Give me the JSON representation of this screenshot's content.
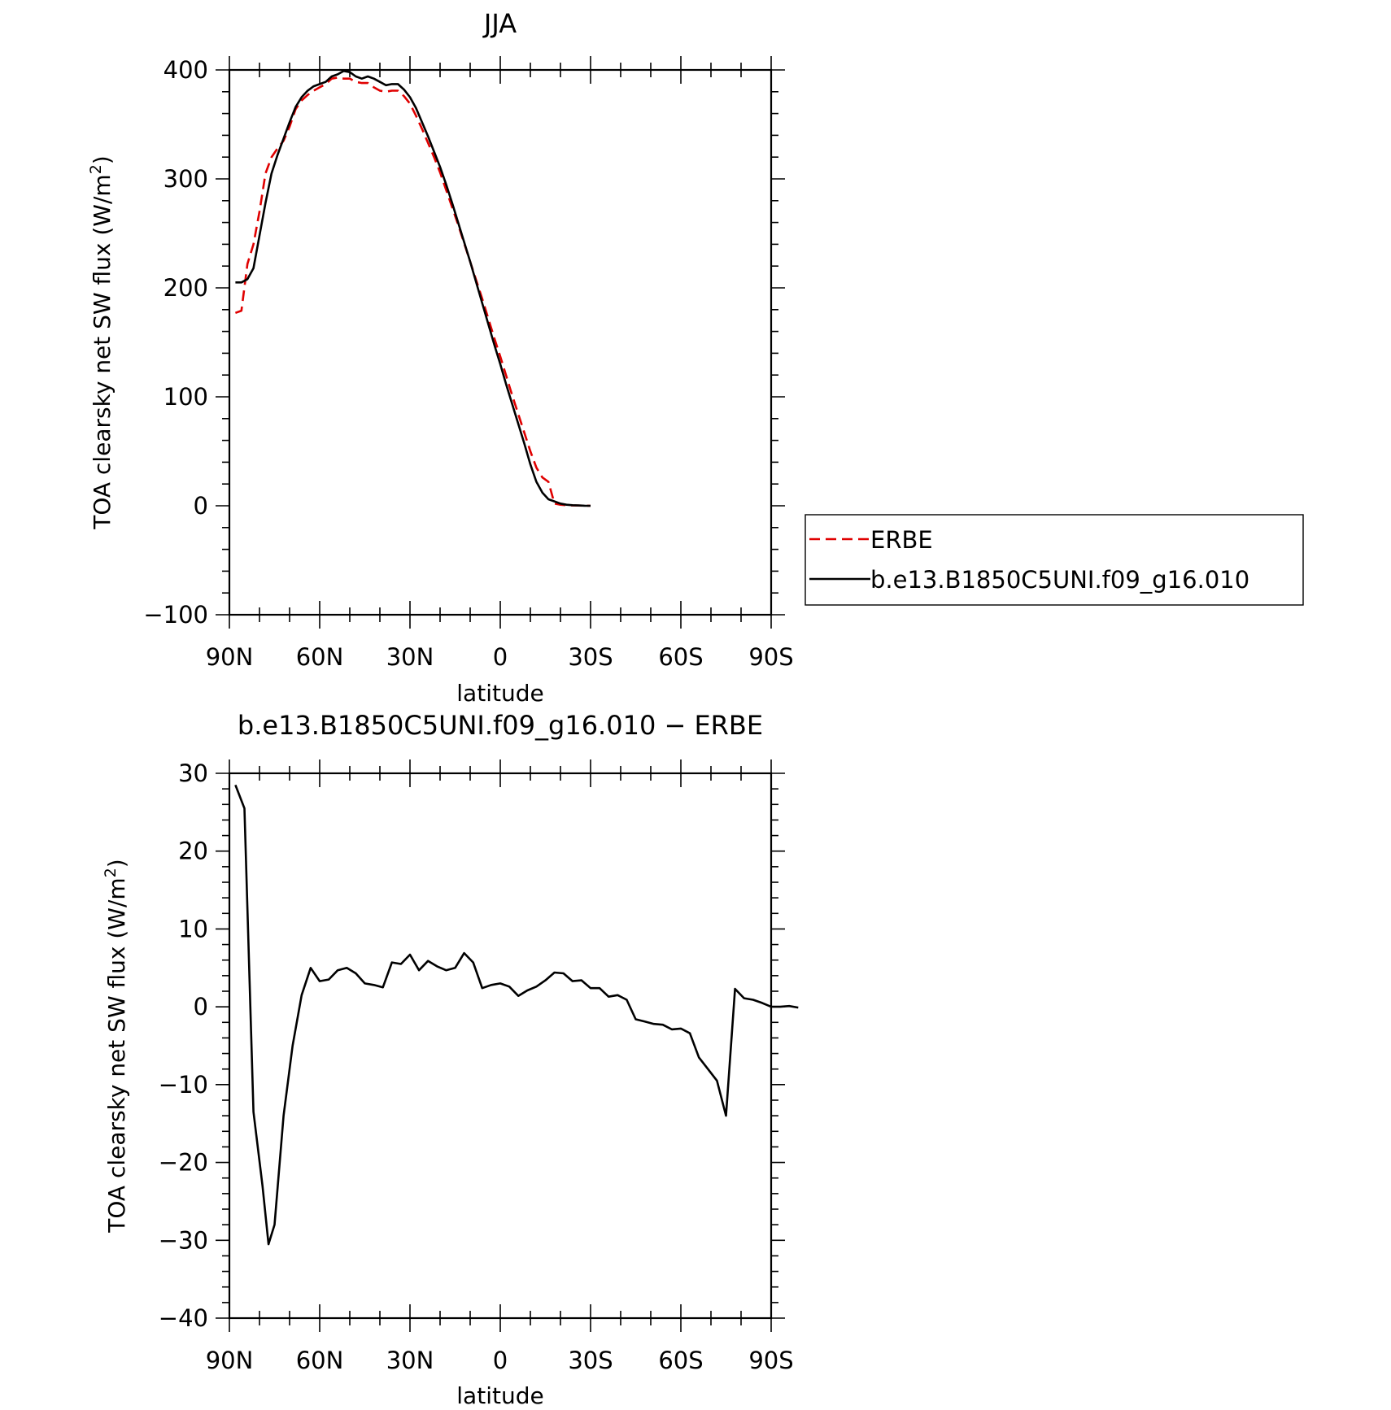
{
  "chart_data": [
    {
      "type": "line",
      "title": "JJA",
      "xlabel": "latitude",
      "ylabel": "TOA clearsky net SW flux (W/m",
      "ylabel_sup": "2",
      "ylabel_tail": ")",
      "xlim": [
        90,
        -90
      ],
      "ylim": [
        -100,
        400
      ],
      "x_ticks": [
        90,
        60,
        30,
        0,
        -30,
        -60,
        -90
      ],
      "x_tick_labels": [
        "90N",
        "60N",
        "30N",
        "0",
        "30S",
        "60S",
        "90S"
      ],
      "y_ticks": [
        -100,
        0,
        100,
        200,
        300,
        400
      ],
      "y_tick_labels": [
        "−100",
        "0",
        "100",
        "200",
        "300",
        "400"
      ],
      "legend": {
        "placement": "right"
      },
      "series": [
        {
          "name": "ERBE",
          "color": "#e00000",
          "dash": "dashed",
          "points": [
            [
              88,
              177
            ],
            [
              86,
              179
            ],
            [
              84,
              222
            ],
            [
              82,
              240
            ],
            [
              80,
              270
            ],
            [
              78,
              305
            ],
            [
              76,
              320
            ],
            [
              74,
              328
            ],
            [
              72,
              335
            ],
            [
              70,
              348
            ],
            [
              68,
              364
            ],
            [
              66,
              372
            ],
            [
              64,
              377
            ],
            [
              62,
              381
            ],
            [
              60,
              384
            ],
            [
              58,
              387
            ],
            [
              56,
              392
            ],
            [
              54,
              393
            ],
            [
              52,
              392
            ],
            [
              50,
              392
            ],
            [
              48,
              389
            ],
            [
              46,
              388
            ],
            [
              44,
              388
            ],
            [
              42,
              384
            ],
            [
              40,
              381
            ],
            [
              38,
              380
            ],
            [
              36,
              381
            ],
            [
              34,
              381
            ],
            [
              32,
              376
            ],
            [
              30,
              369
            ],
            [
              28,
              358
            ],
            [
              26,
              346
            ],
            [
              24,
              333
            ],
            [
              22,
              320
            ],
            [
              20,
              306
            ],
            [
              18,
              290
            ],
            [
              16,
              274
            ],
            [
              14,
              258
            ],
            [
              12,
              241
            ],
            [
              10,
              224
            ],
            [
              8,
              207
            ],
            [
              6,
              190
            ],
            [
              4,
              172
            ],
            [
              2,
              154
            ],
            [
              0,
              137
            ],
            [
              -2,
              119
            ],
            [
              -4,
              101
            ],
            [
              -6,
              84
            ],
            [
              -8,
              67
            ],
            [
              -10,
              50
            ],
            [
              -12,
              35
            ],
            [
              -14,
              26
            ],
            [
              -16,
              22
            ],
            [
              -18,
              2
            ],
            [
              -20,
              1
            ],
            [
              -22,
              0.5
            ],
            [
              -24,
              0.3
            ],
            [
              -26,
              0.2
            ],
            [
              -28,
              0.1
            ],
            [
              -30,
              0
            ]
          ]
        },
        {
          "name": "b.e13.B1850C5UNI.f09_g16.010",
          "color": "#000000",
          "dash": "solid",
          "points": [
            [
              88,
              205
            ],
            [
              86,
              205
            ],
            [
              84,
              208
            ],
            [
              82,
              218
            ],
            [
              80,
              248
            ],
            [
              78,
              278
            ],
            [
              76,
              305
            ],
            [
              74,
              322
            ],
            [
              72,
              337
            ],
            [
              70,
              352
            ],
            [
              68,
              366
            ],
            [
              66,
              375
            ],
            [
              64,
              381
            ],
            [
              62,
              385
            ],
            [
              60,
              387
            ],
            [
              58,
              389
            ],
            [
              56,
              394
            ],
            [
              54,
              396
            ],
            [
              52,
              399
            ],
            [
              50,
              398
            ],
            [
              48,
              394
            ],
            [
              46,
              392
            ],
            [
              44,
              394
            ],
            [
              42,
              392
            ],
            [
              40,
              389
            ],
            [
              38,
              386
            ],
            [
              36,
              387
            ],
            [
              34,
              387
            ],
            [
              32,
              382
            ],
            [
              30,
              375
            ],
            [
              28,
              365
            ],
            [
              26,
              352
            ],
            [
              24,
              339
            ],
            [
              22,
              325
            ],
            [
              20,
              311
            ],
            [
              18,
              295
            ],
            [
              16,
              278
            ],
            [
              14,
              260
            ],
            [
              12,
              242
            ],
            [
              10,
              224
            ],
            [
              8,
              205
            ],
            [
              6,
              186
            ],
            [
              4,
              167
            ],
            [
              2,
              148
            ],
            [
              0,
              130
            ],
            [
              -2,
              111
            ],
            [
              -4,
              93
            ],
            [
              -6,
              75
            ],
            [
              -8,
              57
            ],
            [
              -10,
              38
            ],
            [
              -12,
              22
            ],
            [
              -14,
              12
            ],
            [
              -16,
              6
            ],
            [
              -18,
              4
            ],
            [
              -20,
              2
            ],
            [
              -22,
              1
            ],
            [
              -24,
              0.5
            ],
            [
              -26,
              0.3
            ],
            [
              -28,
              0.1
            ],
            [
              -30,
              0
            ]
          ]
        }
      ]
    },
    {
      "type": "line",
      "title": "b.e13.B1850C5UNI.f09_g16.010 − ERBE",
      "xlabel": "latitude",
      "ylabel": "TOA clearsky net SW flux (W/m",
      "ylabel_sup": "2",
      "ylabel_tail": ")",
      "xlim": [
        90,
        -90
      ],
      "ylim": [
        -40,
        30
      ],
      "x_ticks": [
        90,
        60,
        30,
        0,
        -30,
        -60,
        -90
      ],
      "x_tick_labels": [
        "90N",
        "60N",
        "30N",
        "0",
        "30S",
        "60S",
        "90S"
      ],
      "y_ticks": [
        -40,
        -30,
        -20,
        -10,
        0,
        10,
        20,
        30
      ],
      "y_tick_labels": [
        "−40",
        "−30",
        "−20",
        "−10",
        "0",
        "10",
        "20",
        "30"
      ],
      "series": [
        {
          "color": "#000000",
          "dash": "solid",
          "points": [
            [
              88,
              28.5
            ],
            [
              85,
              25.5
            ],
            [
              82,
              -13.5
            ],
            [
              79,
              -23
            ],
            [
              77,
              -30.5
            ],
            [
              75,
              -28
            ],
            [
              72,
              -14
            ],
            [
              69,
              -5
            ],
            [
              66,
              1.5
            ],
            [
              63,
              5
            ],
            [
              60,
              3.3
            ],
            [
              57,
              3.5
            ],
            [
              54,
              4.7
            ],
            [
              51,
              5
            ],
            [
              48,
              4.3
            ],
            [
              45,
              3
            ],
            [
              42,
              2.8
            ],
            [
              39,
              2.5
            ],
            [
              36,
              5.7
            ],
            [
              33,
              5.5
            ],
            [
              30,
              6.7
            ],
            [
              27,
              4.7
            ],
            [
              24,
              5.9
            ],
            [
              21,
              5.2
            ],
            [
              18,
              4.7
            ],
            [
              15,
              5
            ],
            [
              12,
              6.9
            ],
            [
              9,
              5.7
            ],
            [
              6,
              2.4
            ],
            [
              3,
              2.8
            ],
            [
              0,
              3
            ],
            [
              -3,
              2.6
            ],
            [
              -6,
              1.4
            ],
            [
              -9,
              2.1
            ],
            [
              -12,
              2.6
            ],
            [
              -15,
              3.4
            ],
            [
              -18,
              4.4
            ],
            [
              -21,
              4.3
            ],
            [
              -24,
              3.3
            ],
            [
              -27,
              3.4
            ],
            [
              -30,
              2.4
            ],
            [
              -33,
              2.4
            ],
            [
              -36,
              1.3
            ],
            [
              -39,
              1.5
            ],
            [
              -42,
              0.9
            ],
            [
              -45,
              -1.6
            ],
            [
              -48,
              -1.9
            ],
            [
              -51,
              -2.2
            ],
            [
              -54,
              -2.3
            ],
            [
              -57,
              -2.9
            ],
            [
              -60,
              -2.8
            ],
            [
              -63,
              -3.4
            ],
            [
              -66,
              -6.5
            ],
            [
              -69,
              -8
            ],
            [
              -72,
              -9.5
            ],
            [
              -75,
              -14
            ],
            [
              -78,
              2.3
            ],
            [
              -81,
              1.1
            ],
            [
              -84,
              0.9
            ],
            [
              -87,
              0.5
            ],
            [
              -90,
              0
            ],
            [
              -93,
              0
            ],
            [
              -96,
              0.1
            ],
            [
              -99,
              -0.1
            ]
          ]
        }
      ]
    }
  ]
}
